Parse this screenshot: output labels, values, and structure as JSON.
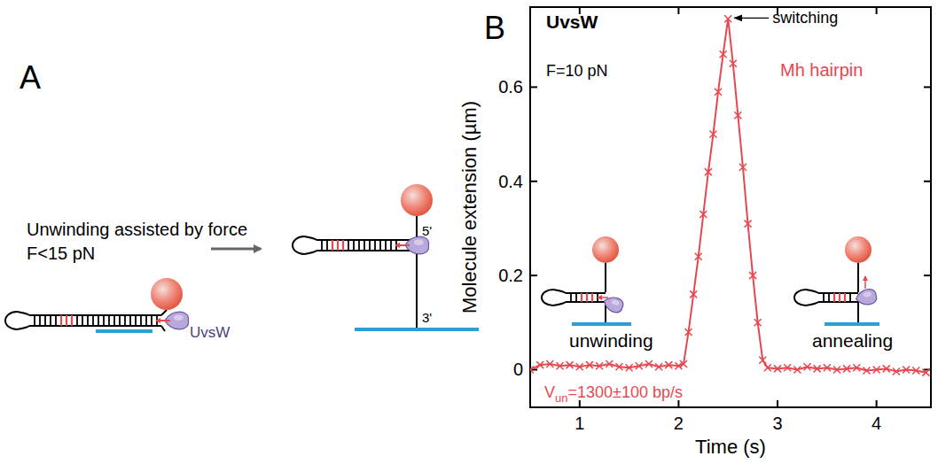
{
  "panel_a": {
    "letter": "A",
    "caption": [
      "Unwinding assisted by force",
      "F<15 pN"
    ],
    "protein": "UvsW",
    "end_5": "5'",
    "end_3": "3'"
  },
  "chart_data": {
    "type": "line",
    "letter": "B",
    "title": "UvsW",
    "subtitle": "F=10 pN",
    "x_label": "Time (s)",
    "y_label": "Molecule extension (µm)",
    "x": [
      0.5,
      0.6,
      0.7,
      0.8,
      0.9,
      1.0,
      1.1,
      1.2,
      1.3,
      1.4,
      1.5,
      1.6,
      1.7,
      1.8,
      1.9,
      2.0,
      2.05,
      2.1,
      2.15,
      2.2,
      2.25,
      2.3,
      2.35,
      2.4,
      2.45,
      2.5,
      2.55,
      2.6,
      2.65,
      2.7,
      2.75,
      2.8,
      2.85,
      2.9,
      3.0,
      3.1,
      3.2,
      3.3,
      3.4,
      3.5,
      3.6,
      3.7,
      3.8,
      3.9,
      4.0,
      4.1,
      4.2,
      4.3,
      4.4,
      4.5
    ],
    "series": [
      {
        "name": "Mh hairpin",
        "color": "#e8474f",
        "marker": "x",
        "values": [
          0.0,
          0.01,
          0.012,
          0.008,
          0.01,
          0.006,
          0.01,
          0.008,
          0.012,
          0.006,
          0.004,
          0.008,
          0.012,
          0.006,
          0.01,
          0.008,
          0.012,
          0.08,
          0.16,
          0.24,
          0.33,
          0.42,
          0.5,
          0.59,
          0.67,
          0.745,
          0.65,
          0.54,
          0.43,
          0.31,
          0.2,
          0.1,
          0.02,
          0.004,
          0.002,
          0.004,
          0.0,
          0.006,
          0.002,
          0.004,
          0.0,
          0.002,
          0.004,
          -0.002,
          0.0,
          0.002,
          -0.004,
          0.0,
          -0.002,
          -0.006
        ]
      }
    ],
    "xlim": [
      0.5,
      4.55
    ],
    "ylim": [
      -0.08,
      0.77
    ],
    "xticks": [
      1,
      2,
      3,
      4
    ],
    "yticks": [
      0,
      0.2,
      0.4,
      0.6
    ],
    "annotations": {
      "peak": "switching",
      "left_inset": "unwinding",
      "right_inset": "annealing",
      "velocity": {
        "symbol": "V",
        "subscript": "un",
        "text": "=1300±100 bp/s"
      }
    }
  }
}
